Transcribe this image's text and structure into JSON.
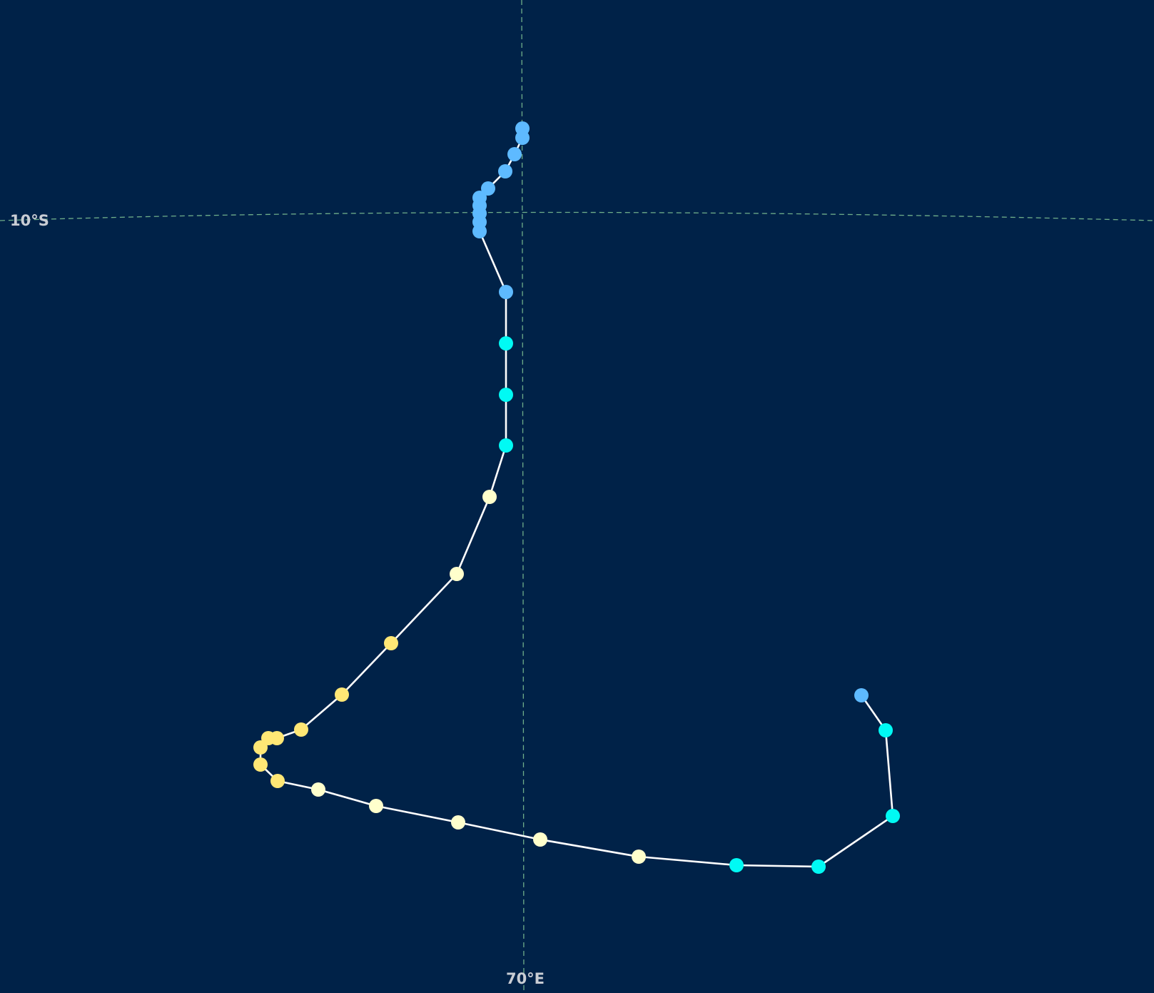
{
  "map": {
    "background": "#002248",
    "grid_color": "#6fae8a",
    "label_color": "#c9cdd4",
    "track_color": "#ffffff",
    "graticule": [
      {
        "kind": "parallel",
        "label": "10°S"
      },
      {
        "kind": "meridian",
        "label": "70°E"
      }
    ],
    "category_colors": {
      "td": "#5ebaff",
      "ts": "#00faf4",
      "c1": "#ffffcc",
      "c2": "#ffe775"
    },
    "track": [
      {
        "cat": "td"
      },
      {
        "cat": "td"
      },
      {
        "cat": "td"
      },
      {
        "cat": "td"
      },
      {
        "cat": "td"
      },
      {
        "cat": "td"
      },
      {
        "cat": "td"
      },
      {
        "cat": "td"
      },
      {
        "cat": "td"
      },
      {
        "cat": "td"
      },
      {
        "cat": "td"
      },
      {
        "cat": "ts"
      },
      {
        "cat": "ts"
      },
      {
        "cat": "ts"
      },
      {
        "cat": "c1"
      },
      {
        "cat": "c1"
      },
      {
        "cat": "c2"
      },
      {
        "cat": "c2"
      },
      {
        "cat": "c2"
      },
      {
        "cat": "c2"
      },
      {
        "cat": "c2"
      },
      {
        "cat": "c2"
      },
      {
        "cat": "c2"
      },
      {
        "cat": "c2"
      },
      {
        "cat": "c1"
      },
      {
        "cat": "c1"
      },
      {
        "cat": "c1"
      },
      {
        "cat": "c1"
      },
      {
        "cat": "c1"
      },
      {
        "cat": "ts"
      },
      {
        "cat": "ts"
      },
      {
        "cat": "ts"
      },
      {
        "cat": "ts"
      },
      {
        "cat": "td"
      }
    ]
  }
}
